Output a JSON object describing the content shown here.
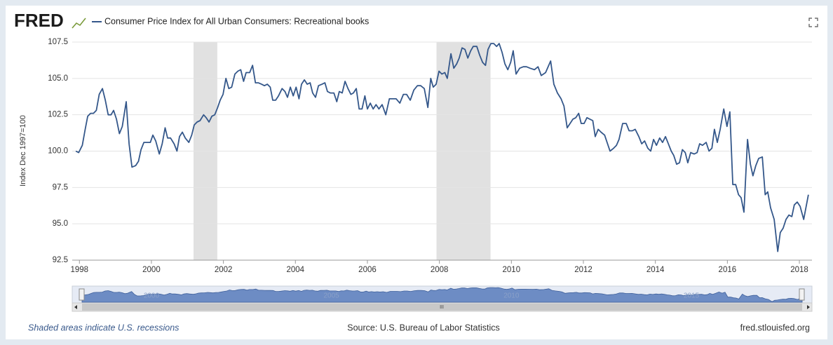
{
  "logo": "FRED",
  "chart_data": {
    "type": "line",
    "ylabel": "Index Dec 1997=100",
    "x": [
      1997.9,
      1997.98,
      1998.08,
      1998.16,
      1998.23,
      1998.31,
      1998.39,
      1998.47,
      1998.55,
      1998.64,
      1998.72,
      1998.8,
      1998.88,
      1998.95,
      1999.03,
      1999.11,
      1999.19,
      1999.3,
      1999.38,
      1999.46,
      1999.56,
      1999.64,
      1999.71,
      1999.79,
      1999.89,
      1999.97,
      2000.04,
      2000.12,
      2000.22,
      2000.3,
      2000.38,
      2000.45,
      2000.53,
      2000.63,
      2000.71,
      2000.78,
      2000.86,
      2000.94,
      2001.04,
      2001.12,
      2001.19,
      2001.27,
      2001.35,
      2001.45,
      2001.52,
      2001.6,
      2001.68,
      2001.76,
      2001.84,
      2001.91,
      2001.99,
      2002.07,
      2002.15,
      2002.23,
      2002.32,
      2002.4,
      2002.48,
      2002.56,
      2002.63,
      2002.73,
      2002.81,
      2002.89,
      2002.97,
      2003.06,
      2003.14,
      2003.22,
      2003.3,
      2003.37,
      2003.45,
      2003.53,
      2003.63,
      2003.71,
      2003.78,
      2003.86,
      2003.94,
      2004.02,
      2004.1,
      2004.17,
      2004.25,
      2004.33,
      2004.41,
      2004.48,
      2004.56,
      2004.64,
      2004.74,
      2004.82,
      2004.89,
      2004.97,
      2005.07,
      2005.15,
      2005.22,
      2005.3,
      2005.38,
      2005.46,
      2005.54,
      2005.61,
      2005.69,
      2005.77,
      2005.85,
      2005.93,
      2006.0,
      2006.08,
      2006.16,
      2006.24,
      2006.32,
      2006.41,
      2006.51,
      2006.61,
      2006.71,
      2006.8,
      2006.9,
      2007.0,
      2007.09,
      2007.19,
      2007.29,
      2007.39,
      2007.48,
      2007.58,
      2007.68,
      2007.76,
      2007.83,
      2007.91,
      2007.99,
      2008.07,
      2008.15,
      2008.22,
      2008.32,
      2008.4,
      2008.48,
      2008.55,
      2008.63,
      2008.71,
      2008.79,
      2008.87,
      2008.94,
      2009.04,
      2009.12,
      2009.2,
      2009.28,
      2009.35,
      2009.43,
      2009.51,
      2009.59,
      2009.66,
      2009.74,
      2009.82,
      2009.9,
      2009.98,
      2010.05,
      2010.13,
      2010.23,
      2010.33,
      2010.42,
      2010.52,
      2010.64,
      2010.74,
      2010.83,
      2010.95,
      2011.09,
      2011.18,
      2011.28,
      2011.38,
      2011.46,
      2011.55,
      2011.63,
      2011.71,
      2011.79,
      2011.87,
      2011.94,
      2012.02,
      2012.1,
      2012.18,
      2012.26,
      2012.33,
      2012.41,
      2012.49,
      2012.59,
      2012.74,
      2012.84,
      2012.92,
      2012.99,
      2013.09,
      2013.19,
      2013.27,
      2013.36,
      2013.44,
      2013.54,
      2013.62,
      2013.7,
      2013.79,
      2013.87,
      2013.95,
      2014.03,
      2014.12,
      2014.2,
      2014.28,
      2014.36,
      2014.44,
      2014.51,
      2014.59,
      2014.67,
      2014.75,
      2014.83,
      2014.9,
      2014.98,
      2015.08,
      2015.16,
      2015.23,
      2015.31,
      2015.41,
      2015.49,
      2015.57,
      2015.64,
      2015.72,
      2015.8,
      2015.9,
      2015.99,
      2016.07,
      2016.15,
      2016.23,
      2016.31,
      2016.38,
      2016.46,
      2016.56,
      2016.64,
      2016.71,
      2016.79,
      2016.87,
      2016.97,
      2017.05,
      2017.12,
      2017.2,
      2017.3,
      2017.4,
      2017.47,
      2017.55,
      2017.63,
      2017.71,
      2017.79,
      2017.86,
      2017.94,
      2018.02,
      2018.12,
      2018.25
    ],
    "series": [
      {
        "name": "Consumer Price Index for All Urban Consumers: Recreational books",
        "color": "#34578a",
        "values": [
          100.0,
          99.9,
          100.4,
          101.5,
          102.4,
          102.6,
          102.6,
          102.8,
          103.9,
          104.3,
          103.5,
          102.5,
          102.5,
          102.8,
          102.2,
          101.2,
          101.7,
          103.4,
          100.5,
          98.9,
          99.0,
          99.3,
          100.1,
          100.6,
          100.6,
          100.6,
          101.1,
          100.7,
          99.8,
          100.5,
          101.6,
          100.9,
          100.9,
          100.5,
          100.0,
          101.0,
          101.3,
          100.9,
          100.6,
          101.1,
          101.8,
          102.0,
          102.1,
          102.5,
          102.3,
          102.0,
          102.4,
          102.5,
          103.0,
          103.5,
          103.9,
          105.0,
          104.3,
          104.4,
          105.3,
          105.5,
          105.6,
          104.8,
          105.4,
          105.4,
          105.9,
          104.7,
          104.7,
          104.6,
          104.5,
          104.6,
          104.4,
          103.5,
          103.5,
          103.8,
          104.3,
          104.1,
          103.7,
          104.4,
          103.8,
          104.4,
          103.6,
          104.6,
          104.9,
          104.6,
          104.7,
          104.0,
          103.7,
          104.5,
          104.6,
          104.7,
          104.1,
          104.0,
          104.0,
          103.4,
          104.1,
          104.0,
          104.8,
          104.3,
          103.9,
          104.0,
          104.3,
          102.9,
          102.9,
          103.8,
          102.9,
          103.3,
          102.9,
          103.2,
          102.9,
          103.2,
          102.5,
          103.6,
          103.6,
          103.6,
          103.3,
          103.9,
          103.9,
          103.5,
          104.2,
          104.5,
          104.5,
          104.3,
          103.0,
          105.0,
          104.4,
          104.6,
          105.5,
          105.3,
          105.4,
          105.0,
          106.7,
          105.7,
          106.0,
          106.4,
          107.1,
          107.0,
          106.4,
          106.9,
          107.2,
          107.2,
          106.6,
          106.1,
          105.9,
          107.0,
          107.4,
          107.4,
          107.2,
          107.4,
          106.8,
          106.0,
          105.6,
          106.1,
          106.9,
          105.3,
          105.7,
          105.8,
          105.8,
          105.7,
          105.6,
          105.8,
          105.2,
          105.4,
          106.2,
          104.6,
          104.0,
          103.6,
          103.1,
          101.6,
          101.9,
          102.2,
          102.3,
          102.6,
          101.9,
          101.9,
          102.3,
          102.2,
          102.1,
          101.0,
          101.5,
          101.3,
          101.1,
          100.0,
          100.2,
          100.4,
          100.8,
          101.9,
          101.9,
          101.4,
          101.4,
          101.5,
          101.0,
          100.5,
          100.7,
          100.2,
          100.0,
          100.8,
          100.4,
          100.9,
          100.6,
          101.0,
          100.5,
          100.0,
          99.7,
          99.1,
          99.2,
          100.1,
          99.9,
          99.2,
          99.9,
          99.8,
          99.9,
          100.5,
          100.4,
          100.6,
          100.0,
          100.2,
          101.5,
          100.6,
          101.5,
          102.9,
          101.7,
          102.7,
          97.7,
          97.7,
          97.0,
          96.8,
          95.8,
          100.8,
          99.1,
          98.3,
          99.0,
          99.5,
          99.6,
          97.0,
          97.2,
          96.1,
          95.3,
          93.1,
          94.4,
          94.7,
          95.3,
          95.6,
          95.5,
          96.3,
          96.5,
          96.2,
          95.3,
          97.0
        ]
      }
    ],
    "recessions": [
      [
        2001.17,
        2001.83
      ],
      [
        2007.92,
        2009.42
      ]
    ],
    "xlim": [
      1997.8,
      2018.35
    ],
    "xticks": [
      1998,
      2000,
      2002,
      2004,
      2006,
      2008,
      2010,
      2012,
      2014,
      2016,
      2018
    ],
    "ylim": [
      92.5,
      107.5
    ],
    "yticks": [
      92.5,
      {
        "value": 95,
        "label": "95.0"
      },
      97.5,
      {
        "value": 100,
        "label": "100.0"
      },
      102.5,
      {
        "value": 105,
        "label": "105.0"
      },
      107.5
    ],
    "grid": true,
    "navigator_labels": [
      "2000",
      "2005",
      "2010",
      "2015"
    ],
    "scroll_label": "III"
  },
  "footer": {
    "note": "Shaded areas indicate U.S. recessions",
    "source": "Source: U.S. Bureau of Labor Statistics",
    "site": "fred.stlouisfed.org"
  }
}
